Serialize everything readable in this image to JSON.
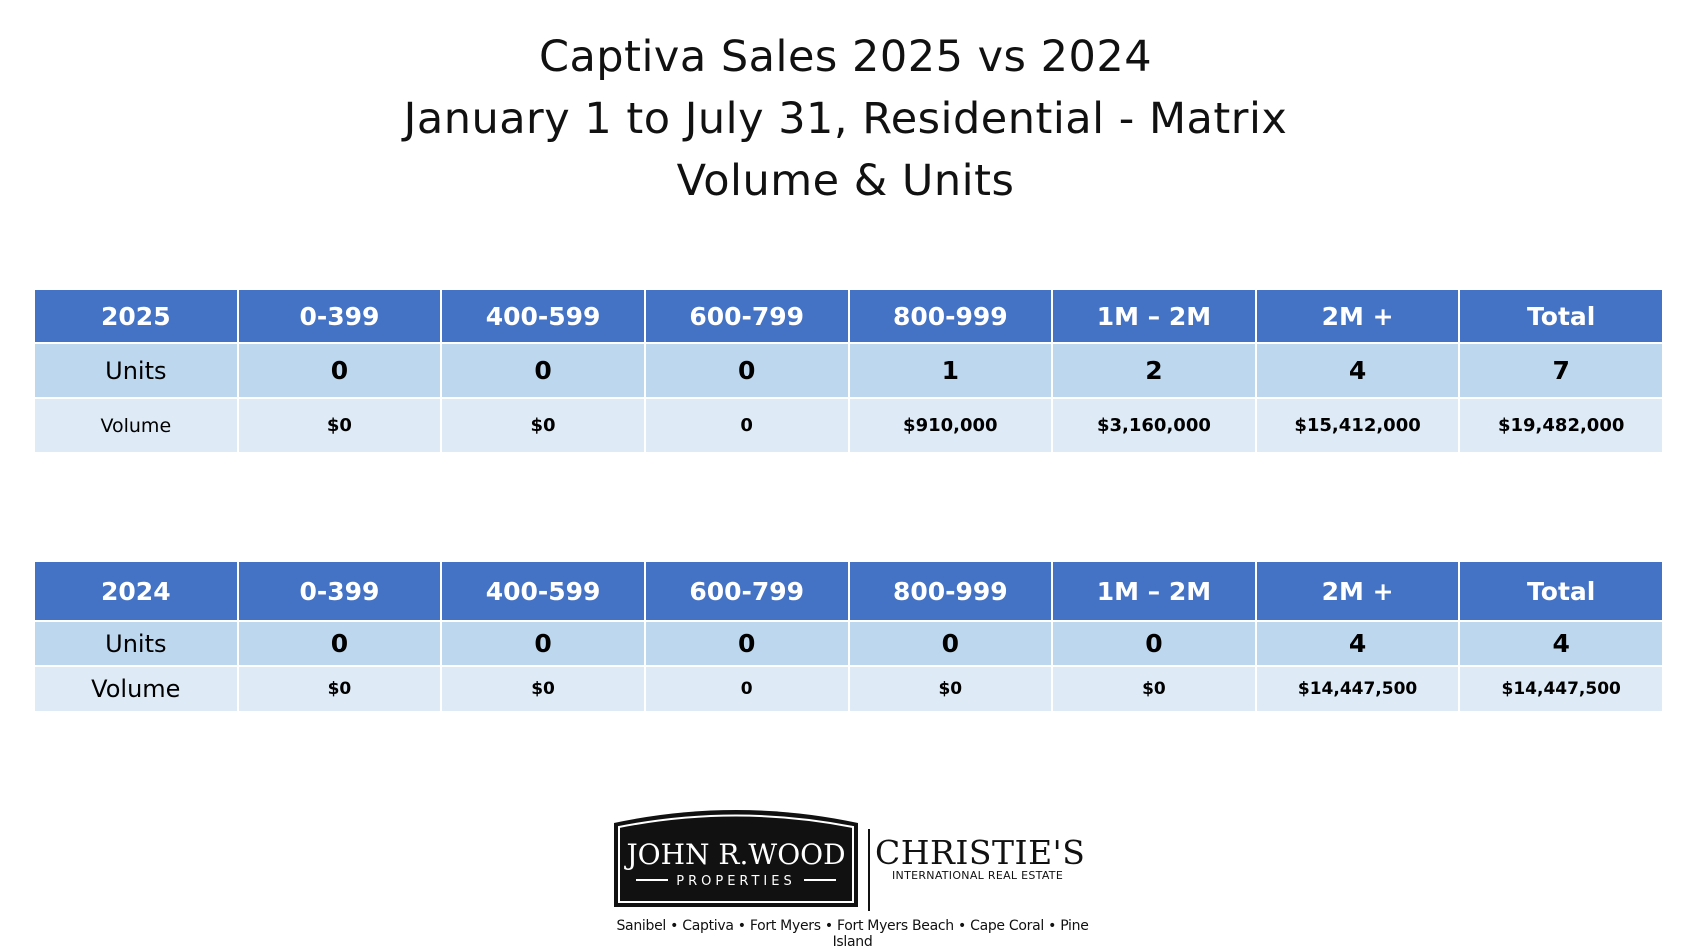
{
  "title": {
    "line1": "Captiva Sales  2025 vs 2024",
    "line2": "January 1 to July 31, Residential - Matrix",
    "line3": "Volume & Units"
  },
  "colors": {
    "header": "#4472c4",
    "units_row": "#bdd7ee",
    "volume_row": "#deebf7"
  },
  "table_2025": {
    "headers": [
      "2025",
      "0-399",
      "400-599",
      "600-799",
      "800-999",
      "1M – 2M",
      "2M +",
      "Total"
    ],
    "units_label": "Units",
    "units": [
      "0",
      "0",
      "0",
      "1",
      "2",
      "4",
      "7"
    ],
    "volume_label": "Volume",
    "volume": [
      "$0",
      "$0",
      "0",
      "$910,000",
      "$3,160,000",
      "$15,412,000",
      "$19,482,000"
    ]
  },
  "table_2024": {
    "headers": [
      "2024",
      "0-399",
      "400-599",
      "600-799",
      "800-999",
      "1M – 2M",
      "2M +",
      "Total"
    ],
    "units_label": "Units",
    "units": [
      "0",
      "0",
      "0",
      "0",
      "0",
      "4",
      "4"
    ],
    "volume_label": "Volume",
    "volume": [
      "$0",
      "$0",
      "0",
      "$0",
      "$0",
      "$14,447,500",
      "$14,447,500"
    ]
  },
  "logo": {
    "jrw_name": "JOHN R.WOOD",
    "jrw_sub": "PROPERTIES",
    "christies": "CHRISTIE'S",
    "christies_sub": "INTERNATIONAL REAL ESTATE",
    "locations": "Sanibel • Captiva • Fort Myers • Fort Myers Beach • Cape Coral • Pine Island"
  }
}
